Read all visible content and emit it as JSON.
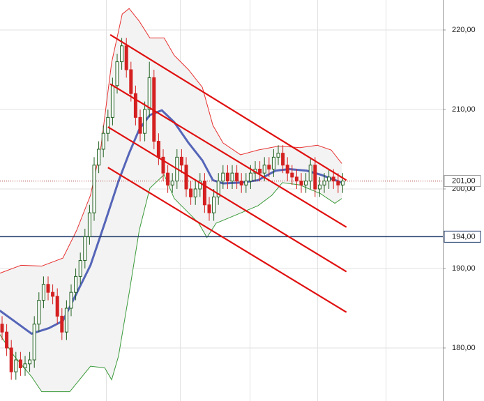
{
  "chart_data": {
    "type": "candlestick",
    "ylim": [
      173.33,
      223.77
    ],
    "yticks": [
      {
        "value": 180,
        "label": "180,00"
      },
      {
        "value": 190,
        "label": "190,00"
      },
      {
        "value": 200,
        "label": "200,00"
      },
      {
        "value": 210,
        "label": "210,00"
      },
      {
        "value": 220,
        "label": "220,00"
      }
    ],
    "grid": true,
    "up_color": "#1f5f1f",
    "down_color": "#d42020",
    "candles": {
      "open": [
        183,
        182,
        180,
        177,
        178.5,
        177.5,
        178,
        178.5,
        183,
        186,
        188,
        187,
        186.5,
        184,
        182,
        185,
        187,
        189,
        191,
        194,
        197,
        203,
        205,
        207,
        209,
        213,
        216,
        218,
        215,
        212,
        209,
        207,
        210,
        214,
        206,
        204,
        202,
        200.5,
        201,
        204,
        203,
        200,
        199,
        200,
        201,
        198,
        197,
        199,
        201,
        202,
        201,
        202,
        201,
        200.5,
        201,
        202,
        202.5,
        202,
        203,
        202.5,
        204,
        204.5,
        203,
        202,
        201.5,
        201,
        200.5,
        201,
        203,
        200,
        200.5,
        201,
        201.5,
        201,
        200.5
      ],
      "high": [
        184,
        183,
        181,
        179.5,
        179.5,
        179,
        179.5,
        184,
        187,
        189,
        189,
        188,
        187.5,
        185,
        186,
        188,
        190,
        192,
        195,
        198,
        204,
        206,
        208,
        210,
        214,
        217,
        219,
        219,
        216,
        213,
        210,
        211,
        216,
        215,
        207,
        205,
        203,
        202,
        205,
        205,
        204,
        201,
        201,
        202,
        202,
        199,
        200,
        202,
        203,
        203,
        203,
        203,
        202,
        202,
        203,
        203.5,
        203.5,
        204,
        204,
        205,
        205.5,
        205.5,
        204,
        203,
        202.5,
        202,
        202,
        204,
        204,
        201.5,
        202,
        202.5,
        202.5,
        202,
        202
      ],
      "low": [
        181,
        179,
        176,
        176,
        176.5,
        176.5,
        177,
        177.5,
        182,
        185,
        186,
        185.5,
        183,
        181,
        181,
        184,
        186,
        188,
        190,
        193,
        196,
        202,
        204,
        206,
        208,
        212,
        215,
        214,
        211,
        208,
        206,
        206,
        209,
        205,
        203,
        201,
        199.5,
        199.5,
        200,
        202,
        199,
        198,
        198,
        199,
        197,
        196,
        196,
        198,
        200,
        200,
        200,
        200,
        199.5,
        199.5,
        200,
        201,
        201,
        201,
        201.5,
        201.5,
        203,
        202,
        201,
        200.5,
        200,
        199.5,
        199.5,
        200,
        199,
        199,
        199.5,
        200,
        200,
        199.5,
        199.5
      ],
      "close": [
        182,
        180,
        177,
        178.5,
        177.5,
        178,
        178.5,
        183,
        186,
        188,
        187,
        186.5,
        184,
        182,
        185,
        187,
        189,
        191,
        194,
        197,
        203,
        205,
        207,
        209,
        213,
        216,
        218,
        215,
        212,
        209,
        207,
        210,
        214,
        206,
        204,
        202,
        200.5,
        201,
        204,
        203,
        200,
        199,
        200,
        201,
        198,
        197,
        199,
        201,
        202,
        201,
        202,
        201,
        200.5,
        201,
        202,
        202.5,
        202,
        203,
        202.5,
        204,
        204.5,
        203,
        202,
        201.5,
        201,
        200.5,
        201,
        203,
        200,
        200.5,
        201,
        201.5,
        201,
        200.5,
        201
      ]
    },
    "bands": [
      {
        "color": "#e83030",
        "x": [
          -0.5,
          4.1,
          8.6,
          13.2,
          16.2,
          19.2,
          21.5,
          23.8,
          26.1,
          27.6,
          29.8,
          32.1,
          35.2,
          37.4,
          40.5,
          43.5,
          45.8,
          48.0,
          51.8,
          55.6,
          60.2,
          64.7,
          68.5,
          71.5,
          73.8
        ],
        "values": [
          189.4,
          190.4,
          190.3,
          191.3,
          194.8,
          199.2,
          205.4,
          215.9,
          222.0,
          222.7,
          221.1,
          219.0,
          219.0,
          216.8,
          215.0,
          212.8,
          208.0,
          205.8,
          204.3,
          204.9,
          205.4,
          205.2,
          205.5,
          204.9,
          203.2
        ]
      },
      {
        "color": "#3a9a3a",
        "x": [
          -0.5,
          2.6,
          6.4,
          8.6,
          14.7,
          19.2,
          22.3,
          23.8,
          25.3,
          27.6,
          29.8,
          32.1,
          35.2,
          37.4,
          40.5,
          42.7,
          44.5,
          46.5,
          51.1,
          55.6,
          58.6,
          60.9,
          64.7,
          69.2,
          72.3,
          73.8
        ],
        "values": [
          181.7,
          179.0,
          176.4,
          174.5,
          174.5,
          177.7,
          177.5,
          176.0,
          179.0,
          186.9,
          194.8,
          200.1,
          201.8,
          198.8,
          197.0,
          195.7,
          193.9,
          195.7,
          196.8,
          197.9,
          199.2,
          200.8,
          200.5,
          199.4,
          198.2,
          198.8
        ]
      },
      {
        "color": "#5565b8",
        "x": [
          -0.5,
          2.6,
          6.4,
          10.2,
          13.2,
          16.2,
          19.2,
          22.3,
          25.3,
          27.6,
          29.8,
          32.1,
          34.7,
          37.4,
          40.5,
          43.5,
          45.8,
          48.0,
          51.8,
          55.6,
          59.4,
          62.4,
          66.2,
          69.2,
          73.8
        ],
        "values": [
          184.7,
          183.4,
          181.8,
          182.5,
          183.4,
          186.9,
          190.4,
          195.7,
          201.0,
          204.5,
          207.5,
          209.3,
          209.9,
          208.4,
          205.8,
          203.6,
          201.1,
          200.7,
          200.8,
          201.1,
          202.3,
          202.5,
          202.3,
          201.8,
          200.8
        ]
      }
    ],
    "trend_lines": [
      {
        "x": [
          23.5,
          74.8
        ],
        "values": [
          219.4,
          201.1
        ]
      },
      {
        "x": [
          23.5,
          74.8
        ],
        "values": [
          213.2,
          195.2
        ]
      },
      {
        "x": [
          23.0,
          74.8
        ],
        "values": [
          207.8,
          189.6
        ]
      },
      {
        "x": [
          23.0,
          74.8
        ],
        "values": [
          202.7,
          184.5
        ]
      }
    ],
    "trend_color": "#e01010",
    "hline": {
      "value": 194,
      "label": "194,00",
      "color": "#1f3a6a"
    },
    "last_price": {
      "value": 201,
      "label": "201,00",
      "color": "#a02020"
    }
  }
}
